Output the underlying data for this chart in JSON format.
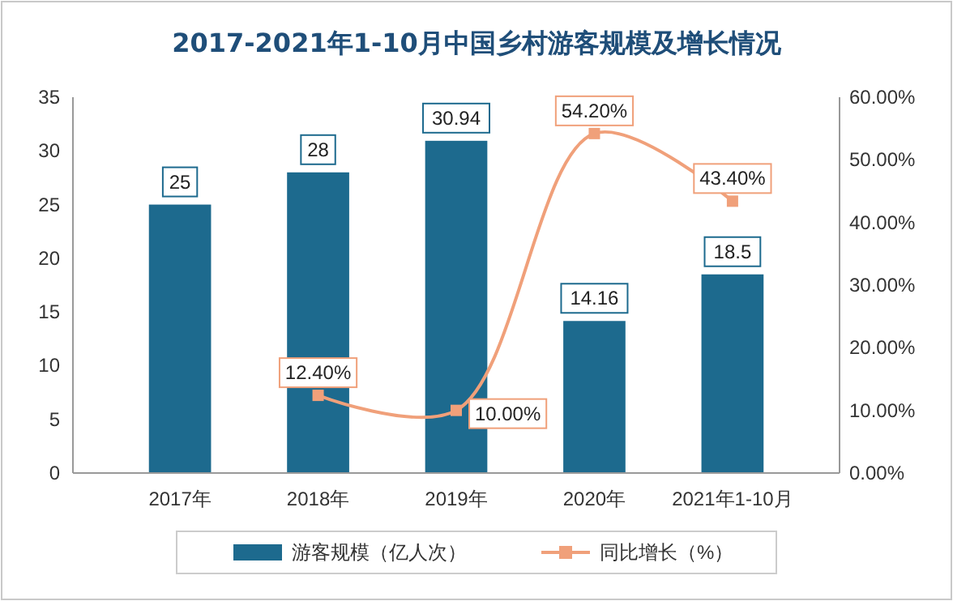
{
  "chart_data": {
    "type": "bar",
    "title": "2017-2021年1-10月中国乡村游客规模及增长情况",
    "categories": [
      "2017年",
      "2018年",
      "2019年",
      "2020年",
      "2021年1-10月"
    ],
    "series": [
      {
        "name": "游客规模（亿人次）",
        "color": "#1d6a8e",
        "values": [
          25,
          28,
          30.94,
          14.16,
          18.5
        ],
        "value_labels": [
          "25",
          "28",
          "30.94",
          "14.16",
          "18.5"
        ]
      },
      {
        "name": "同比增长（%）",
        "type": "line",
        "axis": "y2",
        "color": "#f0a07a",
        "marker": "square",
        "values": [
          null,
          12.4,
          10,
          54.2,
          43.4
        ],
        "value_labels": [
          null,
          "12.40%",
          "10.00%",
          "54.20%",
          "43.40%"
        ]
      }
    ],
    "ylim": [
      0,
      35
    ],
    "yticks": [
      0,
      5,
      10,
      15,
      20,
      25,
      30,
      35
    ],
    "y2lim": [
      0,
      60
    ],
    "y2ticks": [
      {
        "value": 0,
        "label": "0.00%"
      },
      {
        "value": 10,
        "label": "10.00%"
      },
      {
        "value": 20,
        "label": "20.00%"
      },
      {
        "value": 30,
        "label": "30.00%"
      },
      {
        "value": 40,
        "label": "40.00%"
      },
      {
        "value": 50,
        "label": "50.00%"
      },
      {
        "value": 60,
        "label": "60.00%"
      }
    ],
    "legend": "bottom",
    "grid": false
  }
}
